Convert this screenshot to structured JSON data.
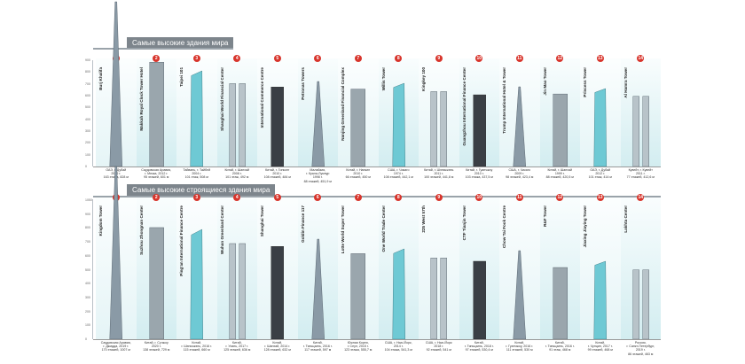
{
  "section_top": {
    "title": "Самые высокие здания мира"
  },
  "section_bottom": {
    "title": "Самые высокие строящиеся здания мира"
  },
  "top": [
    {
      "n": "1",
      "name": "Burj Khalifa",
      "cap": [
        "ОАЭ, г. Дубай",
        "2010 г.",
        "163 этажа, 828 м"
      ]
    },
    {
      "n": "2",
      "name": "Makkah Royal Clock Tower Hotel",
      "cap": [
        "Саудовская Аравия,",
        "г. Мекка, 2012 г.",
        "95 этажей, 601 м"
      ]
    },
    {
      "n": "3",
      "name": "Taipei 101",
      "cap": [
        "Тайвань, г. Тайбей",
        "2004 г.",
        "101 этаж, 508 м"
      ]
    },
    {
      "n": "4",
      "name": "Shanghai World Financial Center",
      "cap": [
        "Китай, г. Шанхай",
        "2008 г.",
        "101 этаж, 492 м"
      ]
    },
    {
      "n": "5",
      "name": "International Commerce Centre",
      "cap": [
        "Китай, г. Гонконг",
        "2010 г.",
        "108 этажей, 484 м"
      ]
    },
    {
      "n": "6",
      "name": "Petronas Towers",
      "cap": [
        "Малайзия,",
        "г. Куала-Лумпур",
        "1998 г.",
        "88 этажей, 451,9 м"
      ]
    },
    {
      "n": "7",
      "name": "Nanjing Greenland Financial Complex",
      "cap": [
        "Китай, г. Нанкин",
        "2010 г.",
        "66 этажей, 450 м"
      ]
    },
    {
      "n": "8",
      "name": "Willis Tower",
      "cap": [
        "США, г. Чикаго",
        "1974 г.",
        "108 этажей, 442,1 м"
      ]
    },
    {
      "n": "9",
      "name": "Kingkey 100",
      "cap": [
        "Китай, г. Шэньчжэнь",
        "2011 г.",
        "100 этажей, 441,8 м"
      ]
    },
    {
      "n": "10",
      "name": "Guangzhou International Finance Center",
      "cap": [
        "Китай, г. Гуанчжоу",
        "2010 г.",
        "103 этажа, 437,5 м"
      ]
    },
    {
      "n": "11",
      "name": "Trump International Hotel & Tower",
      "cap": [
        "США, г. Чикаго",
        "2009 г.",
        "98 этажей, 423,4 м"
      ]
    },
    {
      "n": "12",
      "name": "Jin Mao Tower",
      "cap": [
        "Китай, г. Шанхай",
        "1999 г.",
        "88 этажей, 420,5 м"
      ]
    },
    {
      "n": "13",
      "name": "Princess Tower",
      "cap": [
        "ОАЭ, г. Дубай",
        "2012 г.",
        "101 этаж, 414 м"
      ]
    },
    {
      "n": "14",
      "name": "Al Hamra Tower",
      "cap": [
        "Кувейт, г. Кувейт",
        "2011 г.",
        "77 этажей, 412,6 м"
      ]
    }
  ],
  "bottom": [
    {
      "n": "1",
      "name": "Kingdom Tower",
      "cap": [
        "Саудовская Аравия,",
        "г. Джидда, 2019 г.",
        "170 этажей, 1007 м"
      ]
    },
    {
      "n": "2",
      "name": "Suzhou Zhongnan Center",
      "cap": [
        "Китай, г. Сучжоу",
        "2020 г.",
        "138 этажей, 729 м"
      ]
    },
    {
      "n": "3",
      "name": "Ping'an International Finance Centre",
      "cap": [
        "Китай,",
        "г. Шэньчжэнь, 2016 г.",
        "115 этажей, 660 м"
      ]
    },
    {
      "n": "4",
      "name": "Wuhan Greenland Center",
      "cap": [
        "Китай,",
        "г. Ухань, 2017 г.",
        "125 этажей, 636 м"
      ]
    },
    {
      "n": "5",
      "name": "Shanghai Tower",
      "cap": [
        "Китай,",
        "г. Шанхай, 2014 г.",
        "128 этажей, 632 м"
      ]
    },
    {
      "n": "6",
      "name": "Goldin Finance 117",
      "cap": [
        "Китай,",
        "г. Тяньцзинь, 2016 г.",
        "117 этажей, 597 м"
      ]
    },
    {
      "n": "7",
      "name": "Lotte World Super Tower",
      "cap": [
        "Южная Корея,",
        "г. Сеул, 2015 г.",
        "123 этажа, 555,7 м"
      ]
    },
    {
      "n": "8",
      "name": "One World Trade Center",
      "cap": [
        "США, г. Нью-Йорк,",
        "2014 г.",
        "104 этажа, 541,3 м"
      ]
    },
    {
      "n": "9",
      "name": "225 West 57th",
      "cap": [
        "США, г. Нью-Йорк",
        "2018 г.",
        "92 этажей, 541 м"
      ]
    },
    {
      "n": "10",
      "name": "CTF Tianjin Tower",
      "cap": [
        "Китай,",
        "г. Тяньцзинь, 2018 г.",
        "97 этажей, 530,4 м"
      ]
    },
    {
      "n": "11",
      "name": "Chow Tai Fook Centre",
      "cap": [
        "Китай,",
        "г. Гуанчжоу, 2016 г.",
        "111 этажей, 530 м"
      ]
    },
    {
      "n": "12",
      "name": "R&F Tower",
      "cap": [
        "Китай,",
        "г. Тяньцзинь, 2016 г.",
        "91 этаж, 468 м"
      ]
    },
    {
      "n": "13",
      "name": "Jiaxing Jiaying Tower",
      "cap": [
        "Китай,",
        "г. Чунцин, 2017 г.",
        "99 этажей, 468 м"
      ]
    },
    {
      "n": "14",
      "name": "Lakhta Center",
      "cap": [
        "Россия,",
        "г. Санкт-Петербург,",
        "2019 г.",
        "86 этажей, 463 м"
      ]
    }
  ],
  "ticks_top": [
    "900",
    "800",
    "700",
    "600",
    "500",
    "400",
    "300",
    "200",
    "100",
    "0"
  ],
  "ticks_bottom": [
    "1050",
    "900",
    "800",
    "700",
    "600",
    "500",
    "400",
    "300",
    "200",
    "100",
    "0"
  ],
  "colors": {
    "banner": "#7d858c",
    "badge": "#d8352c",
    "glass": "#6ec9d4"
  }
}
